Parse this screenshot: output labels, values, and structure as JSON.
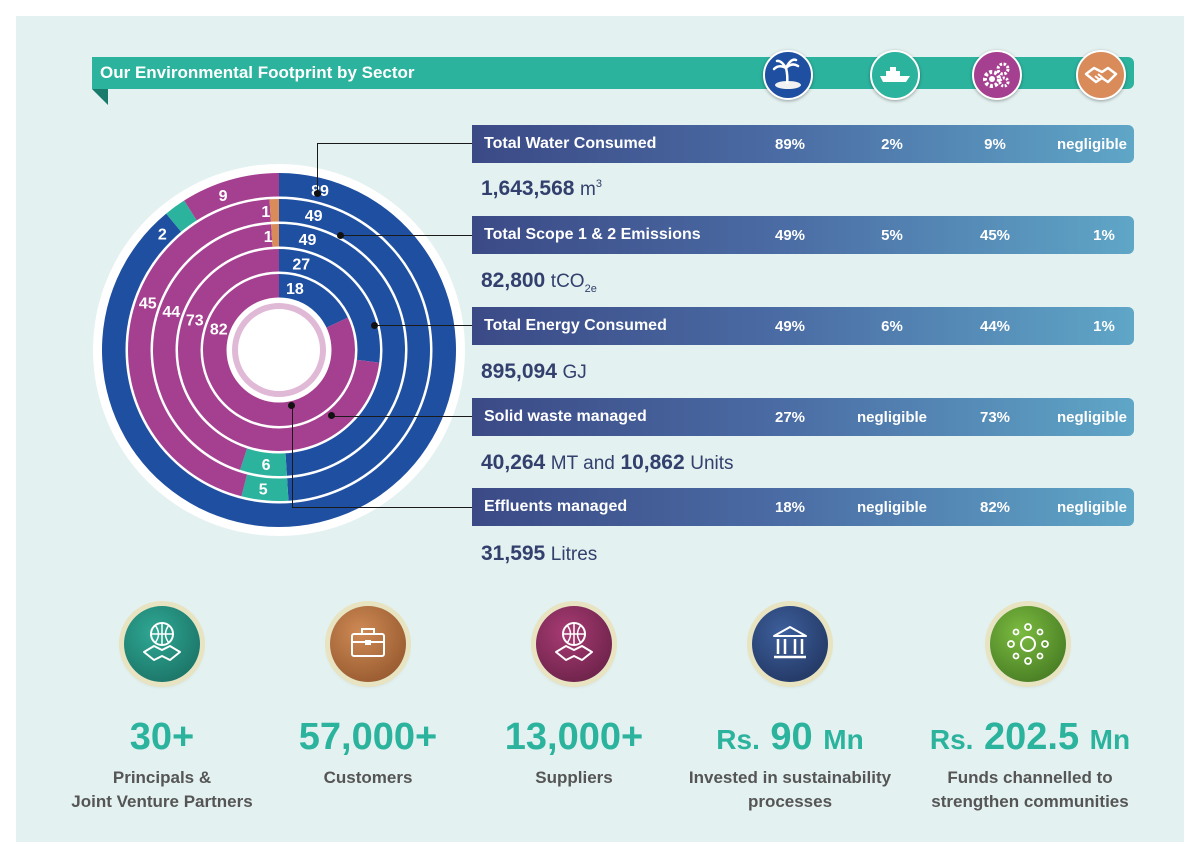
{
  "header": {
    "title": "Our Environmental Footprint by Sector"
  },
  "sectors": [
    {
      "icon": "island-palm-icon",
      "color": "#1f4fa0"
    },
    {
      "icon": "ship-icon",
      "color": "#2bb39e"
    },
    {
      "icon": "gears-icon",
      "color": "#a53f8f"
    },
    {
      "icon": "handshake-icon",
      "color": "#d98b5a"
    }
  ],
  "metrics": [
    {
      "label": "Total Water Consumed",
      "shares": [
        "89%",
        "2%",
        "9%",
        "negligible"
      ],
      "value": "1,643,568",
      "unit": "m",
      "unit_sup": "3"
    },
    {
      "label": "Total Scope 1 & 2 Emissions",
      "shares": [
        "49%",
        "5%",
        "45%",
        "1%"
      ],
      "value": "82,800",
      "unit": "tCO",
      "unit_sub": "2e"
    },
    {
      "label": "Total Energy Consumed",
      "shares": [
        "49%",
        "6%",
        "44%",
        "1%"
      ],
      "value": "895,094",
      "unit": "GJ"
    },
    {
      "label": "Solid waste managed",
      "shares": [
        "27%",
        "negligible",
        "73%",
        "negligible"
      ],
      "value": "40,264",
      "unit": "MT and",
      "value2": "10,862",
      "unit2": "Units"
    },
    {
      "label": "Effluents managed",
      "shares": [
        "18%",
        "negligible",
        "82%",
        "negligible"
      ],
      "value": "31,595",
      "unit": "Litres"
    }
  ],
  "chart_data": {
    "type": "pie",
    "subtype": "concentric-rings",
    "series_colors": [
      "#1f4fa0",
      "#2bb39e",
      "#a53f8f",
      "#d98b5a"
    ],
    "rings": [
      {
        "metric": "Total Water Consumed",
        "values": [
          89,
          2,
          9,
          0
        ],
        "labels": [
          "89",
          "2",
          "9",
          ""
        ]
      },
      {
        "metric": "Total Scope 1 & 2 Emissions",
        "values": [
          49,
          5,
          45,
          1
        ],
        "labels": [
          "49",
          "5",
          "45",
          "1"
        ]
      },
      {
        "metric": "Total Energy Consumed",
        "values": [
          49,
          6,
          44,
          1
        ],
        "labels": [
          "49",
          "6",
          "44",
          "1"
        ]
      },
      {
        "metric": "Solid waste managed",
        "values": [
          27,
          0,
          73,
          0
        ],
        "labels": [
          "27",
          "",
          "73",
          ""
        ]
      },
      {
        "metric": "Effluents managed",
        "values": [
          18,
          0,
          82,
          0
        ],
        "labels": [
          "18",
          "",
          "82",
          ""
        ]
      }
    ]
  },
  "stats": [
    {
      "icon": "globe-handshake-icon",
      "color": "#1f8a7a",
      "prefix": "",
      "value": "30+",
      "suffix": "",
      "label1": "Principals &",
      "label2": "Joint Venture Partners"
    },
    {
      "icon": "briefcase-icon",
      "color": "#b8703f",
      "prefix": "",
      "value": "57,000+",
      "suffix": "",
      "label1": "Customers",
      "label2": ""
    },
    {
      "icon": "globe-handshake-icon",
      "color": "#8a2b5e",
      "prefix": "",
      "value": "13,000+",
      "suffix": "",
      "label1": "Suppliers",
      "label2": ""
    },
    {
      "icon": "bank-icon",
      "color": "#2d4a80",
      "prefix": "Rs.",
      "value": "90",
      "suffix": "Mn",
      "label1": "Invested in sustainability",
      "label2": "processes"
    },
    {
      "icon": "community-icon",
      "color": "#5a9a30",
      "prefix": "Rs.",
      "value": "202.5",
      "suffix": "Mn",
      "label1": "Funds channelled to",
      "label2": "strengthen communities"
    }
  ]
}
